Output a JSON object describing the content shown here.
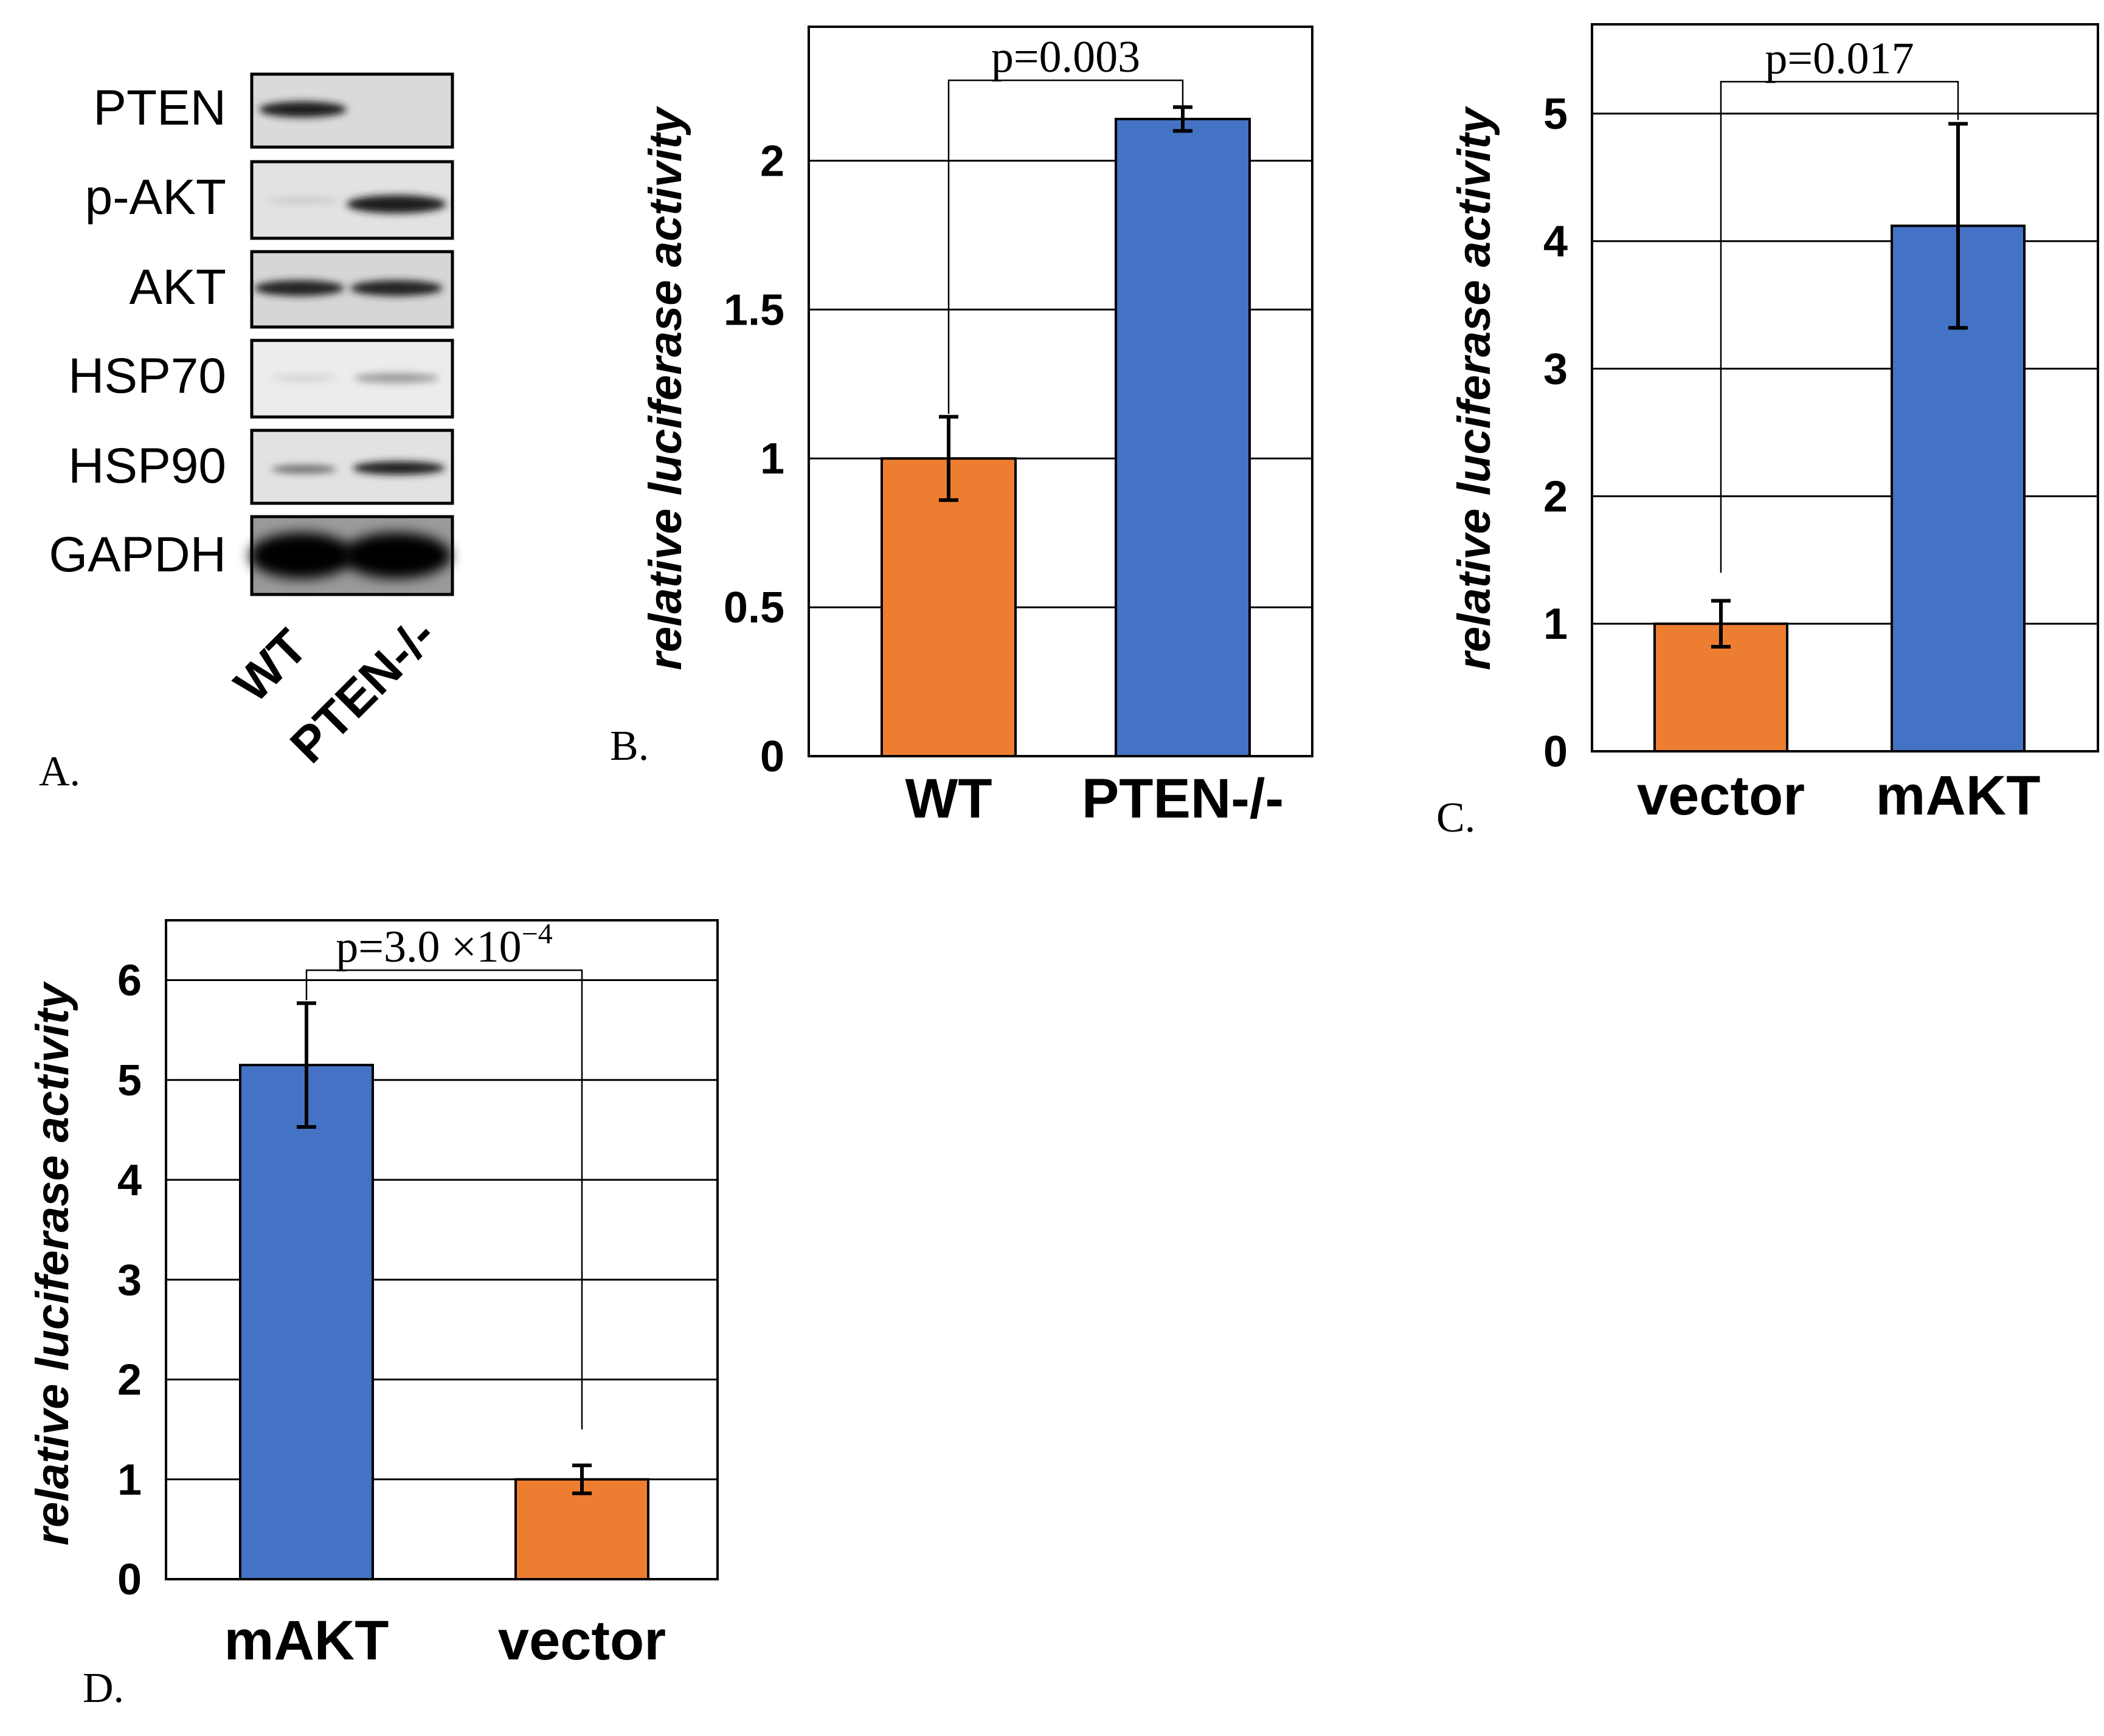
{
  "blot": {
    "rows": [
      "PTEN",
      "p-AKT",
      "AKT",
      "HSP70",
      "HSP90",
      "GAPDH"
    ],
    "lanes": [
      "WT",
      "PTEN-/-"
    ],
    "panel_label": "A."
  },
  "chart_data": [
    {
      "panel": "B.",
      "type": "bar",
      "categories": [
        "WT",
        "PTEN-/-"
      ],
      "values": [
        1.0,
        2.14
      ],
      "errors": [
        0.14,
        0.04
      ],
      "colors": [
        "#ED7D31",
        "#4472C4"
      ],
      "ylabel": "relative luciferase activity",
      "ylim": [
        0,
        2.45
      ],
      "yticks": [
        0,
        0.5,
        1,
        1.5,
        2
      ],
      "ytick_labels": [
        "0",
        "0.5",
        "1",
        "1.5",
        "2"
      ],
      "pvalue_text": "p=0.003",
      "pvalue_exponent": "",
      "bracket_from_value": [
        1.15,
        2.18
      ],
      "bracket_level": 2.27,
      "grid": true
    },
    {
      "panel": "C.",
      "type": "bar",
      "categories": [
        "vector",
        "mAKT"
      ],
      "values": [
        1.0,
        4.12
      ],
      "errors": [
        0.18,
        0.8
      ],
      "colors": [
        "#ED7D31",
        "#4472C4"
      ],
      "ylabel": "relative luciferase activity",
      "ylim": [
        0,
        5.7
      ],
      "yticks": [
        0,
        1,
        2,
        3,
        4,
        5
      ],
      "ytick_labels": [
        "0",
        "1",
        "2",
        "3",
        "4",
        "5"
      ],
      "pvalue_text": "p=0.017",
      "pvalue_exponent": "",
      "bracket_from_value": [
        1.4,
        4.95
      ],
      "bracket_level": 5.25,
      "grid": true
    },
    {
      "panel": "D.",
      "type": "bar",
      "categories": [
        "mAKT",
        "vector"
      ],
      "values": [
        5.15,
        1.0
      ],
      "errors": [
        0.62,
        0.14
      ],
      "colors": [
        "#4472C4",
        "#ED7D31"
      ],
      "ylabel": "relative luciferase activity",
      "ylim": [
        0,
        6.6
      ],
      "yticks": [
        0,
        1,
        2,
        3,
        4,
        5,
        6
      ],
      "ytick_labels": [
        "0",
        "1",
        "2",
        "3",
        "4",
        "5",
        "6"
      ],
      "pvalue_text": "p=3.0 ×10",
      "pvalue_exponent": "−4",
      "bracket_from_value": [
        5.8,
        1.5
      ],
      "bracket_level": 6.1,
      "grid": true
    }
  ]
}
